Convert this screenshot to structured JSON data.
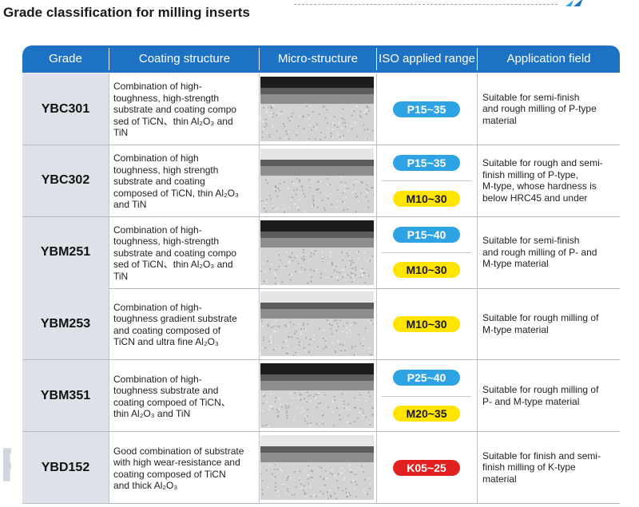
{
  "page": {
    "title": "Grade classification for milling inserts"
  },
  "colors": {
    "header_bg": "#1e72c4",
    "header_text": "#ffffff",
    "grade_cell_bg": "#dde2e9",
    "pill_p": "#2ea3e3",
    "pill_m": "#ffe400",
    "pill_k": "#e2201f"
  },
  "table": {
    "headers": [
      "Grade",
      "Coating structure",
      "Micro-structure",
      "ISO applied range",
      "Application field"
    ],
    "rows": [
      {
        "grade": "YBC301",
        "coating_lines": [
          "Combination of high-",
          "toughness, high-strength",
          "substrate and coating compo",
          "sed of TiCN、thin Al₂O₃ and",
          "TiN"
        ],
        "micro_image": "coating cross-section micrograph",
        "iso": [
          {
            "label": "P15~35",
            "type": "P"
          }
        ],
        "application_lines": [
          "Suitable for semi-finish",
          "and rough milling of P-type",
          "material"
        ]
      },
      {
        "grade": "YBC302",
        "coating_lines": [
          "Combination of high",
          "toughness, high strength",
          "substrate and coating",
          "composed of TiCN, thin Al₂O₃",
          "and TiN"
        ],
        "micro_image": "coating cross-section micrograph",
        "iso": [
          {
            "label": "P15~35",
            "type": "P"
          },
          {
            "label": "M10~30",
            "type": "M"
          }
        ],
        "application_lines": [
          "Suitable for rough and semi-",
          "finish milling of P-type,",
          "M-type, whose hardness is",
          "below HRC45 and under"
        ]
      },
      {
        "grade": "YBM251",
        "coating_lines": [
          "Combination of high-",
          "toughness, high-strength",
          "substrate and coating compo",
          "sed of TiCN、thin Al₂O₃ and",
          "TiN"
        ],
        "micro_image": "coating cross-section micrograph",
        "iso": [
          {
            "label": "P15~40",
            "type": "P"
          },
          {
            "label": "M10~30",
            "type": "M"
          }
        ],
        "application_lines": [
          "Suitable for semi-finish",
          "and rough milling of P- and",
          "M-type material"
        ]
      },
      {
        "grade": "YBM253",
        "coating_lines": [
          "Combination of high-",
          "toughness gradient substrate",
          "and coating composed of",
          "TiCN and ultra fine Al₂O₃"
        ],
        "micro_image": "coating cross-section micrograph",
        "iso": [
          {
            "label": "M10~30",
            "type": "M"
          }
        ],
        "application_lines": [
          "Suitable for rough milling of",
          "M-type material"
        ]
      },
      {
        "grade": "YBM351",
        "coating_lines": [
          "Combination of high-",
          "toughness substrate and",
          "coating compoed of TiCN、",
          "thin Al₂O₃ and TiN"
        ],
        "micro_image": "coating cross-section micrograph",
        "iso": [
          {
            "label": "P25~40",
            "type": "P"
          },
          {
            "label": "M20~35",
            "type": "M"
          }
        ],
        "application_lines": [
          "Suitable for rough milling of",
          "P- and M-type material"
        ]
      },
      {
        "grade": "YBD152",
        "coating_lines": [
          "Good combination of substrate",
          "with high wear-resistance and",
          "coating composed of TiCN",
          "and thick Al₂O₃"
        ],
        "micro_image": "coating cross-section micrograph",
        "iso": [
          {
            "label": "K05~25",
            "type": "K"
          }
        ],
        "application_lines": [
          "Suitable for finish and semi-",
          "finish milling of K-type",
          "material"
        ]
      }
    ]
  }
}
